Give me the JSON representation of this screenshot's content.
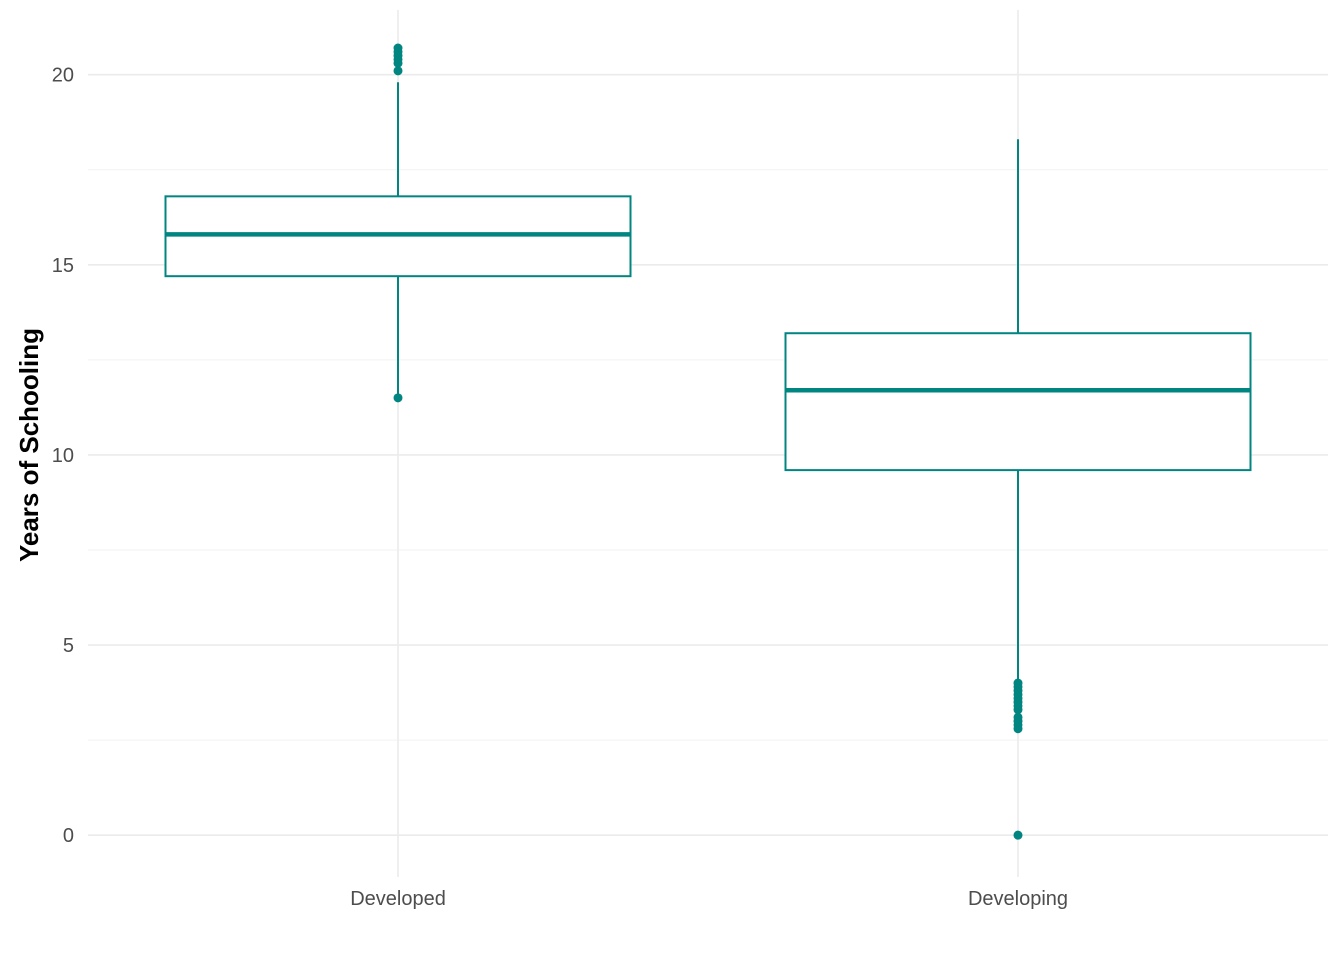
{
  "chart_data": {
    "type": "box",
    "title": "",
    "xlabel": "",
    "ylabel": "Years of Schooling",
    "ylim": [
      -1.1,
      21.7
    ],
    "yticks": [
      0,
      5,
      10,
      15,
      20
    ],
    "ytick_labels": [
      "0",
      "5",
      "10",
      "15",
      "20"
    ],
    "grid": true,
    "legend": "none",
    "color": "#008580",
    "categories": [
      "Developed",
      "Developing"
    ],
    "boxes": [
      {
        "category": "Developed",
        "whisker_low": 11.6,
        "q1": 14.7,
        "median": 15.8,
        "q3": 16.8,
        "whisker_high": 19.8,
        "outliers": [
          11.5,
          20.1,
          20.3,
          20.4,
          20.5,
          20.6,
          20.7
        ]
      },
      {
        "category": "Developing",
        "whisker_low": 4.1,
        "q1": 9.6,
        "median": 11.7,
        "q3": 13.2,
        "whisker_high": 18.3,
        "outliers": [
          0.0,
          2.8,
          2.9,
          3.0,
          3.1,
          3.3,
          3.4,
          3.5,
          3.6,
          3.7,
          3.8,
          3.9,
          4.0
        ]
      }
    ]
  }
}
